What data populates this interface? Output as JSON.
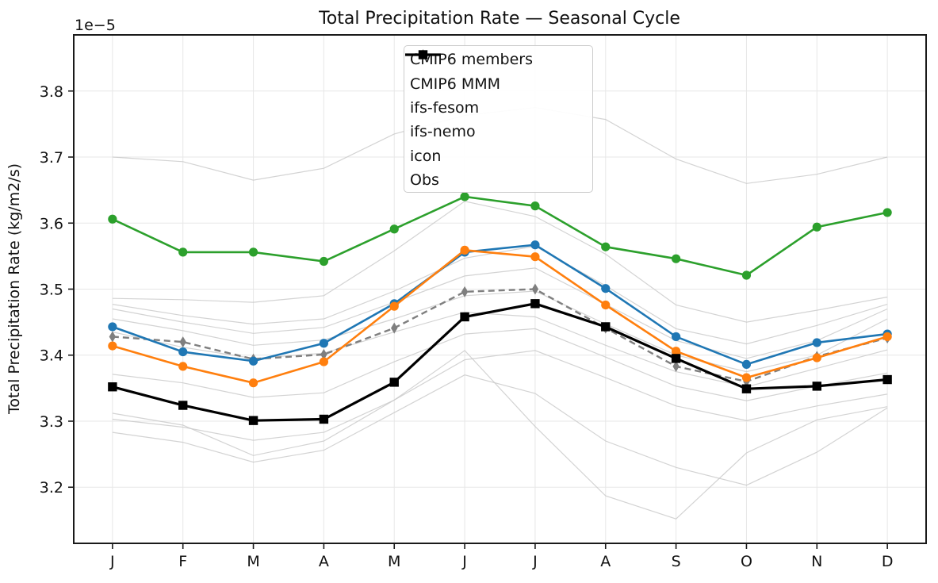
{
  "chart_data": {
    "type": "line",
    "title": "Total Precipitation Rate — Seasonal Cycle",
    "ylabel": "Total Precipitation Rate (kg/m2/s)",
    "y_offset_label": "1e−5",
    "categories": [
      "J",
      "F",
      "M",
      "A",
      "M",
      "J",
      "J",
      "A",
      "S",
      "O",
      "N",
      "D"
    ],
    "ylim": [
      3.115,
      3.885
    ],
    "yticks": [
      "3.2",
      "3.3",
      "3.4",
      "3.5",
      "3.6",
      "3.7",
      "3.8"
    ],
    "grid": true,
    "legend_position": "upper center",
    "value_scale_note": "all values are ×1e-5 kg/m2/s",
    "series": [
      {
        "name": "CMIP6 members",
        "color": "#c8c8c8",
        "linewidth": 1.2,
        "opacity": 0.8,
        "marker": "none",
        "members": [
          [
            3.7,
            3.693,
            3.665,
            3.683,
            3.735,
            3.763,
            3.775,
            3.757,
            3.697,
            3.66,
            3.674,
            3.7
          ],
          [
            3.486,
            3.484,
            3.48,
            3.49,
            3.558,
            3.633,
            3.61,
            3.553,
            3.476,
            3.45,
            3.468,
            3.488
          ],
          [
            3.477,
            3.46,
            3.447,
            3.455,
            3.497,
            3.547,
            3.565,
            3.505,
            3.44,
            3.417,
            3.445,
            3.477
          ],
          [
            3.47,
            3.45,
            3.433,
            3.442,
            3.48,
            3.52,
            3.532,
            3.477,
            3.422,
            3.395,
            3.422,
            3.47
          ],
          [
            3.455,
            3.437,
            3.415,
            3.423,
            3.455,
            3.49,
            3.497,
            3.447,
            3.4,
            3.375,
            3.4,
            3.455
          ],
          [
            3.435,
            3.412,
            3.395,
            3.403,
            3.435,
            3.465,
            3.458,
            3.415,
            3.375,
            3.352,
            3.38,
            3.408
          ],
          [
            3.371,
            3.358,
            3.336,
            3.343,
            3.39,
            3.432,
            3.44,
            3.397,
            3.353,
            3.331,
            3.353,
            3.373
          ],
          [
            3.303,
            3.291,
            3.271,
            3.283,
            3.332,
            3.393,
            3.407,
            3.366,
            3.323,
            3.301,
            3.323,
            3.341
          ],
          [
            3.283,
            3.268,
            3.238,
            3.256,
            3.313,
            3.37,
            3.342,
            3.27,
            3.23,
            3.203,
            3.253,
            3.32
          ],
          [
            3.312,
            3.294,
            3.248,
            3.27,
            3.332,
            3.407,
            3.292,
            3.187,
            3.152,
            3.252,
            3.302,
            3.322
          ]
        ]
      },
      {
        "name": "CMIP6 MMM",
        "color": "#7f7f7f",
        "linewidth": 2.4,
        "dash": "8 5",
        "marker": "diamond",
        "values": [
          3.428,
          3.42,
          3.394,
          3.401,
          3.441,
          3.496,
          3.5,
          3.441,
          3.383,
          3.36,
          3.398,
          3.426
        ]
      },
      {
        "name": "ifs-fesom",
        "color": "#1f77b4",
        "linewidth": 2.6,
        "marker": "circle",
        "values": [
          3.443,
          3.405,
          3.391,
          3.418,
          3.478,
          3.556,
          3.567,
          3.501,
          3.428,
          3.386,
          3.419,
          3.432
        ]
      },
      {
        "name": "ifs-nemo",
        "color": "#ff7f0e",
        "linewidth": 2.6,
        "marker": "circle",
        "values": [
          3.414,
          3.383,
          3.358,
          3.39,
          3.474,
          3.559,
          3.549,
          3.476,
          3.406,
          3.366,
          3.396,
          3.428
        ]
      },
      {
        "name": "icon",
        "color": "#2ca02c",
        "linewidth": 2.6,
        "marker": "circle",
        "values": [
          3.606,
          3.556,
          3.556,
          3.542,
          3.591,
          3.64,
          3.626,
          3.564,
          3.546,
          3.521,
          3.594,
          3.616
        ]
      },
      {
        "name": "Obs",
        "color": "#000000",
        "linewidth": 3.2,
        "marker": "square",
        "values": [
          3.352,
          3.324,
          3.301,
          3.303,
          3.359,
          3.458,
          3.478,
          3.443,
          3.395,
          3.349,
          3.353,
          3.363
        ]
      }
    ]
  }
}
